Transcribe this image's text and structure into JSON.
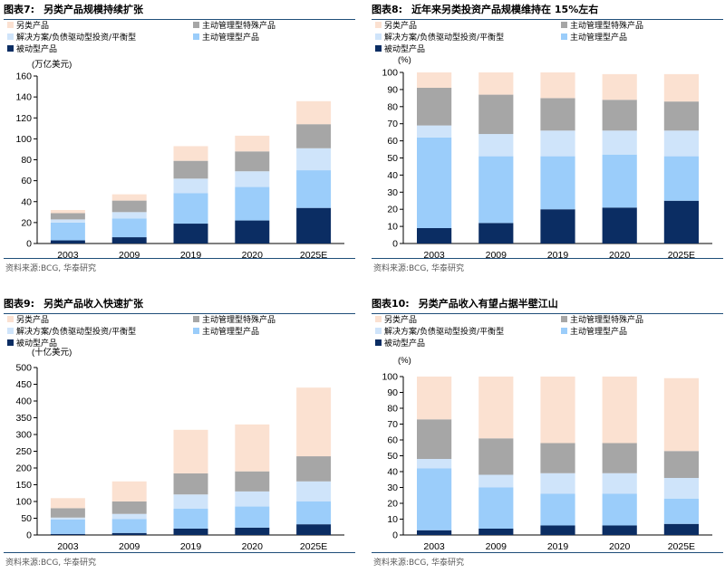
{
  "colors": {
    "alternative": "#fbe1d1",
    "specialty": "#a6a6a6",
    "solutions": "#cfe4fa",
    "active_core": "#9bcdfa",
    "passive": "#0b2d63"
  },
  "chart_data": [
    {
      "type": "bar",
      "stacked": true,
      "figure_label": "图表7:",
      "title": "另类产品规模持续扩张",
      "unit_label": "(万亿美元)",
      "categories": [
        "2003",
        "2009",
        "2019",
        "2020",
        "2025E"
      ],
      "ylim": [
        0,
        160
      ],
      "yticks": [
        0,
        20,
        40,
        60,
        80,
        100,
        120,
        140,
        160
      ],
      "legend": [
        "另类产品",
        "主动管理型特殊产品",
        "解决方案/负债驱动型投资/平衡型",
        "主动管理型产品",
        "被动型产品"
      ],
      "series": [
        {
          "name": "被动型产品",
          "key": "passive",
          "values": [
            3,
            6,
            19,
            22,
            34
          ]
        },
        {
          "name": "主动管理型产品",
          "key": "active_core",
          "values": [
            17,
            18,
            29,
            32,
            36
          ]
        },
        {
          "name": "解决方案/负债驱动型投资/平衡型",
          "key": "solutions",
          "values": [
            3,
            6,
            14,
            15,
            21
          ]
        },
        {
          "name": "主动管理型特殊产品",
          "key": "specialty",
          "values": [
            6,
            11,
            17,
            19,
            23
          ]
        },
        {
          "name": "另类产品",
          "key": "alternative",
          "values": [
            3,
            6,
            14,
            15,
            22
          ]
        }
      ],
      "source": "资料来源:BCG, 华泰研究"
    },
    {
      "type": "bar",
      "stacked": true,
      "figure_label": "图表8:",
      "title": "近年来另类投资产品规模维持在 15%左右",
      "unit_label": "(%)",
      "categories": [
        "2003",
        "2009",
        "2019",
        "2020",
        "2025E"
      ],
      "ylim": [
        0,
        100
      ],
      "yticks": [
        0,
        10,
        20,
        30,
        40,
        50,
        60,
        70,
        80,
        90,
        100
      ],
      "legend": [
        "另类产品",
        "主动管理型特殊产品",
        "解决方案/负债驱动型投资/平衡型",
        "主动管理型产品",
        "被动型产品"
      ],
      "series": [
        {
          "name": "被动型产品",
          "key": "passive",
          "values": [
            9,
            12,
            20,
            21,
            25
          ]
        },
        {
          "name": "主动管理型产品",
          "key": "active_core",
          "values": [
            53,
            39,
            31,
            31,
            26
          ]
        },
        {
          "name": "解决方案/负债驱动型投资/平衡型",
          "key": "solutions",
          "values": [
            7,
            13,
            15,
            14,
            15
          ]
        },
        {
          "name": "主动管理型特殊产品",
          "key": "specialty",
          "values": [
            22,
            23,
            19,
            18,
            17
          ]
        },
        {
          "name": "另类产品",
          "key": "alternative",
          "values": [
            9,
            13,
            15,
            15,
            16
          ]
        }
      ],
      "source": "资料来源:BCG, 华泰研究"
    },
    {
      "type": "bar",
      "stacked": true,
      "figure_label": "图表9:",
      "title": "另类产品收入快速扩张",
      "unit_label": "(十亿美元)",
      "categories": [
        "2003",
        "2009",
        "2019",
        "2020",
        "2025E"
      ],
      "ylim": [
        0,
        500
      ],
      "yticks": [
        0,
        50,
        100,
        150,
        200,
        250,
        300,
        350,
        400,
        450,
        500
      ],
      "legend": [
        "另类产品",
        "主动管理型特殊产品",
        "解决方案/负债驱动型投资/平衡型",
        "主动管理型产品",
        "被动型产品"
      ],
      "series": [
        {
          "name": "被动型产品",
          "key": "passive",
          "values": [
            3,
            6,
            19,
            22,
            32
          ]
        },
        {
          "name": "主动管理型产品",
          "key": "active_core",
          "values": [
            43,
            42,
            60,
            63,
            68
          ]
        },
        {
          "name": "解决方案/负债驱动型投资/平衡型",
          "key": "solutions",
          "values": [
            6,
            15,
            42,
            45,
            60
          ]
        },
        {
          "name": "主动管理型特殊产品",
          "key": "specialty",
          "values": [
            28,
            37,
            63,
            60,
            75
          ]
        },
        {
          "name": "另类产品",
          "key": "alternative",
          "values": [
            30,
            60,
            130,
            140,
            205
          ]
        }
      ],
      "source": "资料来源:BCG, 华泰研究"
    },
    {
      "type": "bar",
      "stacked": true,
      "figure_label": "图表10:",
      "title": "另类产品收入有望占据半壁江山",
      "unit_label": "(%)",
      "categories": [
        "2003",
        "2009",
        "2019",
        "2020",
        "2025E"
      ],
      "ylim": [
        0,
        100
      ],
      "yticks": [
        0,
        10,
        20,
        30,
        40,
        50,
        60,
        70,
        80,
        90,
        100
      ],
      "legend": [
        "另类产品",
        "主动管理型特殊产品",
        "解决方案/负债驱动型投资/平衡型",
        "主动管理型产品",
        "被动型产品"
      ],
      "series": [
        {
          "name": "被动型产品",
          "key": "passive",
          "values": [
            3,
            4,
            6,
            6,
            7
          ]
        },
        {
          "name": "主动管理型产品",
          "key": "active_core",
          "values": [
            39,
            26,
            20,
            20,
            16
          ]
        },
        {
          "name": "解决方案/负债驱动型投资/平衡型",
          "key": "solutions",
          "values": [
            6,
            8,
            13,
            13,
            13
          ]
        },
        {
          "name": "主动管理型特殊产品",
          "key": "specialty",
          "values": [
            25,
            23,
            19,
            19,
            17
          ]
        },
        {
          "name": "另类产品",
          "key": "alternative",
          "values": [
            27,
            39,
            42,
            42,
            46
          ]
        }
      ],
      "source": "资料来源:BCG, 华泰研究"
    }
  ]
}
